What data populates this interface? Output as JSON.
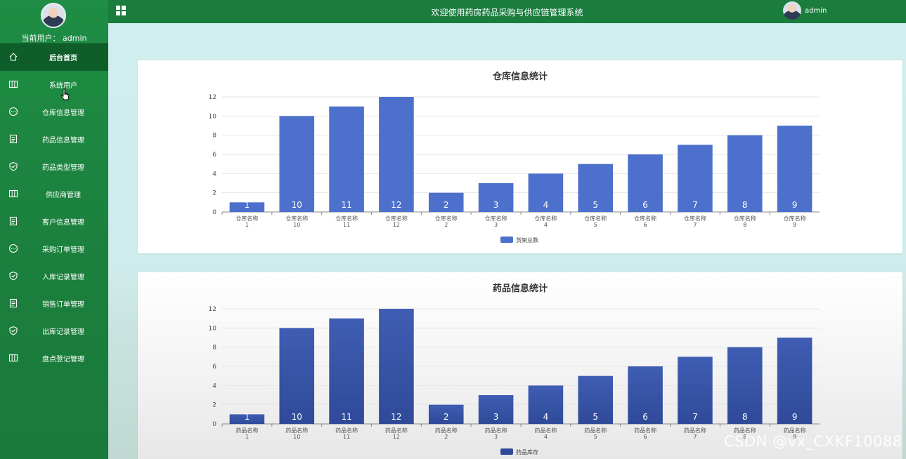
{
  "sidebar": {
    "user_line": "当前用户： admin",
    "items": [
      {
        "label": "后台首页",
        "icon": "home-icon"
      },
      {
        "label": "系统用户",
        "icon": "columns-icon"
      },
      {
        "label": "仓库信息管理",
        "icon": "chat-icon"
      },
      {
        "label": "药品信息管理",
        "icon": "document-icon"
      },
      {
        "label": "药品类型管理",
        "icon": "shield-check-icon"
      },
      {
        "label": "供应商管理",
        "icon": "columns-icon"
      },
      {
        "label": "客户信息管理",
        "icon": "document-icon"
      },
      {
        "label": "采购订单管理",
        "icon": "chat-icon"
      },
      {
        "label": "入库记录管理",
        "icon": "shield-check-icon"
      },
      {
        "label": "销售订单管理",
        "icon": "document-icon"
      },
      {
        "label": "出库记录管理",
        "icon": "shield-check-icon"
      },
      {
        "label": "盘点登记管理",
        "icon": "columns-icon"
      }
    ]
  },
  "topbar": {
    "title": "欢迎使用药房药品采购与供应链管理系统",
    "username": "admin"
  },
  "colors": {
    "sidebar_green": "#1b7f3d",
    "active_green": "#0f5e2a",
    "bar_blue": "#4c70cc",
    "bar_dark_blue": "#3b56a8"
  },
  "watermark": "CSDN @vx_CXKF10088",
  "chart_data": [
    {
      "type": "bar",
      "title": "仓库信息统计",
      "categories": [
        "仓库名称\n1",
        "仓库名称\n10",
        "仓库名称\n11",
        "仓库名称\n12",
        "仓库名称\n2",
        "仓库名称\n3",
        "仓库名称\n4",
        "仓库名称\n5",
        "仓库名称\n6",
        "仓库名称\n7",
        "仓库名称\n8",
        "仓库名称\n9"
      ],
      "series": [
        {
          "name": "货架总数",
          "values": [
            1,
            10,
            11,
            12,
            2,
            3,
            4,
            5,
            6,
            7,
            8,
            9
          ]
        }
      ],
      "ylim": [
        0,
        12
      ],
      "yticks": [
        0,
        2,
        4,
        6,
        8,
        10,
        12
      ],
      "grid": true,
      "legend": "bottom-center"
    },
    {
      "type": "bar",
      "title": "药品信息统计",
      "categories": [
        "药品名称\n1",
        "药品名称\n10",
        "药品名称\n11",
        "药品名称\n12",
        "药品名称\n2",
        "药品名称\n3",
        "药品名称\n4",
        "药品名称\n5",
        "药品名称\n6",
        "药品名称\n7",
        "药品名称\n8",
        "药品名称\n9"
      ],
      "series": [
        {
          "name": "药品库存",
          "values": [
            1,
            10,
            11,
            12,
            2,
            3,
            4,
            5,
            6,
            7,
            8,
            9
          ]
        }
      ],
      "ylim": [
        0,
        12
      ],
      "yticks": [
        0,
        2,
        4,
        6,
        8,
        10,
        12
      ],
      "grid": true,
      "legend": "bottom-center"
    }
  ]
}
